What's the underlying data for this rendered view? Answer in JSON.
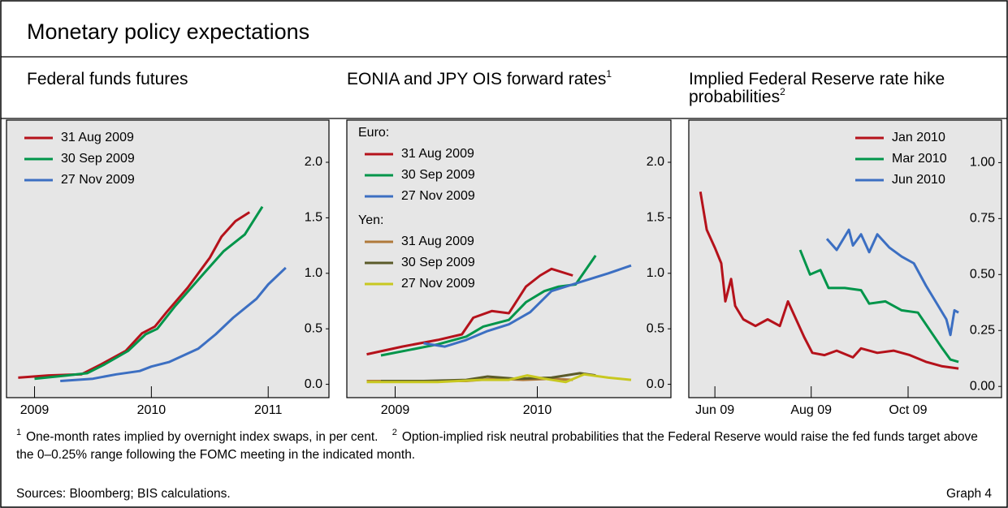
{
  "title": "Monetary policy expectations",
  "chart_data": [
    {
      "type": "line",
      "subtitle": "Federal funds futures",
      "xlim": [
        2008.76,
        2011.52
      ],
      "xticks": [
        2009,
        2010,
        2011
      ],
      "ylim": [
        -0.12,
        2.38
      ],
      "yticks": [
        {
          "value": 0,
          "label": "0.0"
        },
        {
          "value": 0.5,
          "label": "0.5"
        },
        {
          "value": 1,
          "label": "1.0"
        },
        {
          "value": 1.5,
          "label": "1.5"
        },
        {
          "value": 2,
          "label": "2.0"
        }
      ],
      "legend": "upper left",
      "series": [
        {
          "name": "31 Aug 2009",
          "color": "#b5121b",
          "x": [
            2008.86,
            2009.12,
            2009.4,
            2009.57,
            2009.78,
            2009.92,
            2010.03,
            2010.13,
            2010.31,
            2010.5,
            2010.6,
            2010.72,
            2010.84
          ],
          "values": [
            0.06,
            0.08,
            0.09,
            0.18,
            0.3,
            0.46,
            0.52,
            0.65,
            0.87,
            1.14,
            1.33,
            1.47,
            1.55
          ]
        },
        {
          "name": "30 Sep 2009",
          "color": "#00954a",
          "x": [
            2009.0,
            2009.28,
            2009.45,
            2009.6,
            2009.8,
            2009.95,
            2010.05,
            2010.2,
            2010.45,
            2010.62,
            2010.8,
            2010.95
          ],
          "values": [
            0.05,
            0.08,
            0.1,
            0.18,
            0.3,
            0.45,
            0.5,
            0.7,
            1.0,
            1.2,
            1.35,
            1.6
          ]
        },
        {
          "name": "27 Nov 2009",
          "color": "#3c6fc2",
          "x": [
            2009.22,
            2009.5,
            2009.7,
            2009.9,
            2010.0,
            2010.15,
            2010.4,
            2010.55,
            2010.7,
            2010.9,
            2011.0,
            2011.15
          ],
          "values": [
            0.03,
            0.05,
            0.09,
            0.12,
            0.16,
            0.2,
            0.32,
            0.45,
            0.6,
            0.77,
            0.9,
            1.05
          ]
        }
      ]
    },
    {
      "type": "line",
      "subtitle": "EONIA and JPY OIS forward rates",
      "subtitle_note": "1",
      "xlim": [
        2008.66,
        2010.94
      ],
      "xticks": [
        2009,
        2010
      ],
      "ylim": [
        -0.12,
        2.38
      ],
      "yticks": [
        {
          "value": 0,
          "label": "0.0"
        },
        {
          "value": 0.5,
          "label": "0.5"
        },
        {
          "value": 1,
          "label": "1.0"
        },
        {
          "value": 1.5,
          "label": "1.5"
        },
        {
          "value": 2,
          "label": "2.0"
        }
      ],
      "legend": "upper left",
      "groups": [
        {
          "label": "Euro:",
          "series": [
            {
              "name": "31 Aug 2009",
              "color": "#b5121b",
              "x": [
                2008.8,
                2009.05,
                2009.3,
                2009.47,
                2009.55,
                2009.68,
                2009.8,
                2009.92,
                2010.02,
                2010.1,
                2010.25
              ],
              "values": [
                0.27,
                0.34,
                0.4,
                0.45,
                0.6,
                0.66,
                0.64,
                0.88,
                0.98,
                1.04,
                0.98
              ]
            },
            {
              "name": "30 Sep 2009",
              "color": "#00954a",
              "x": [
                2008.9,
                2009.1,
                2009.3,
                2009.5,
                2009.62,
                2009.8,
                2009.92,
                2010.05,
                2010.15,
                2010.27,
                2010.41
              ],
              "values": [
                0.26,
                0.31,
                0.36,
                0.43,
                0.52,
                0.58,
                0.74,
                0.84,
                0.88,
                0.9,
                1.16
              ]
            },
            {
              "name": "27 Nov 2009",
              "color": "#3c6fc2",
              "x": [
                2009.2,
                2009.35,
                2009.5,
                2009.65,
                2009.8,
                2009.95,
                2010.1,
                2010.3,
                2010.5,
                2010.66
              ],
              "values": [
                0.37,
                0.34,
                0.4,
                0.48,
                0.54,
                0.65,
                0.84,
                0.92,
                1.0,
                1.07
              ]
            }
          ]
        },
        {
          "label": "Yen:",
          "series": [
            {
              "name": "31 Aug 2009",
              "color": "#b07a3b",
              "x": [
                2008.8,
                2009.2,
                2009.5,
                2009.7,
                2009.9,
                2010.1,
                2010.25
              ],
              "values": [
                0.03,
                0.03,
                0.03,
                0.05,
                0.04,
                0.05,
                0.04
              ]
            },
            {
              "name": "30 Sep 2009",
              "color": "#5b5b2a",
              "x": [
                2008.9,
                2009.2,
                2009.5,
                2009.65,
                2009.85,
                2010.1,
                2010.3,
                2010.41
              ],
              "values": [
                0.03,
                0.03,
                0.04,
                0.07,
                0.05,
                0.06,
                0.1,
                0.08
              ]
            },
            {
              "name": "27 Nov 2009",
              "color": "#c8c820",
              "x": [
                2008.8,
                2009.3,
                2009.6,
                2009.8,
                2009.93,
                2010.05,
                2010.2,
                2010.33,
                2010.5,
                2010.66
              ],
              "values": [
                0.02,
                0.02,
                0.04,
                0.04,
                0.08,
                0.05,
                0.02,
                0.09,
                0.06,
                0.04
              ]
            }
          ]
        }
      ]
    },
    {
      "type": "line",
      "subtitle": "Implied Federal Reserve rate hike probabilities",
      "subtitle_note": "2",
      "xlim": [
        2009.372,
        2009.911
      ],
      "xticks": [
        {
          "value": 2009.417,
          "label": "Jun 09"
        },
        {
          "value": 2009.583,
          "label": "Aug 09"
        },
        {
          "value": 2009.75,
          "label": "Oct 09"
        }
      ],
      "ylim": [
        -0.05,
        1.19
      ],
      "yticks": [
        {
          "value": 0,
          "label": "0.00"
        },
        {
          "value": 0.25,
          "label": "0.25"
        },
        {
          "value": 0.5,
          "label": "0.50"
        },
        {
          "value": 0.75,
          "label": "0.75"
        },
        {
          "value": 1,
          "label": "1.00"
        }
      ],
      "legend": "upper right",
      "series": [
        {
          "name": "Jan 2010",
          "color": "#b5121b",
          "x": [
            2009.392,
            2009.403,
            2009.417,
            2009.428,
            2009.435,
            2009.445,
            2009.452,
            2009.466,
            2009.487,
            2009.508,
            2009.529,
            2009.543,
            2009.557,
            2009.571,
            2009.585,
            2009.606,
            2009.627,
            2009.655,
            2009.669,
            2009.697,
            2009.725,
            2009.753,
            2009.781,
            2009.809,
            2009.837
          ],
          "values": [
            0.87,
            0.7,
            0.62,
            0.55,
            0.38,
            0.48,
            0.36,
            0.3,
            0.27,
            0.3,
            0.27,
            0.38,
            0.3,
            0.22,
            0.15,
            0.14,
            0.16,
            0.13,
            0.17,
            0.15,
            0.16,
            0.14,
            0.11,
            0.09,
            0.08
          ]
        },
        {
          "name": "Mar 2010",
          "color": "#00954a",
          "x": [
            2009.564,
            2009.581,
            2009.599,
            2009.613,
            2009.641,
            2009.669,
            2009.683,
            2009.711,
            2009.739,
            2009.767,
            2009.788,
            2009.809,
            2009.823,
            2009.837
          ],
          "values": [
            0.61,
            0.5,
            0.52,
            0.44,
            0.44,
            0.43,
            0.37,
            0.38,
            0.34,
            0.33,
            0.25,
            0.17,
            0.12,
            0.11
          ]
        },
        {
          "name": "Jun 2010",
          "color": "#3c6fc2",
          "x": [
            2009.61,
            2009.627,
            2009.648,
            2009.655,
            2009.669,
            2009.683,
            2009.697,
            2009.718,
            2009.739,
            2009.76,
            2009.781,
            2009.802,
            2009.816,
            2009.823,
            2009.83,
            2009.837
          ],
          "values": [
            0.66,
            0.61,
            0.7,
            0.63,
            0.68,
            0.6,
            0.68,
            0.62,
            0.58,
            0.55,
            0.45,
            0.36,
            0.3,
            0.23,
            0.34,
            0.33
          ]
        }
      ]
    }
  ],
  "footnotes": [
    {
      "marker": "1",
      "text": "One-month rates implied by overnight index swaps, in per cent."
    },
    {
      "marker": "2",
      "text": "Option-implied risk neutral probabilities that the Federal Reserve would raise the fed funds target above the 0–0.25% range following the FOMC meeting in the indicated month."
    }
  ],
  "sources": "Sources: Bloomberg; BIS calculations.",
  "graph_label": "Graph 4"
}
